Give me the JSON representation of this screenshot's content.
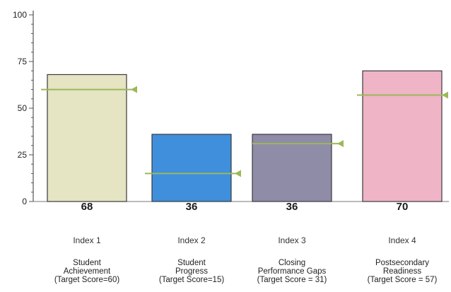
{
  "chart_data": {
    "type": "bar",
    "title": "",
    "xlabel": "",
    "ylabel": "",
    "ylim": [
      0,
      100
    ],
    "yticks": [
      0,
      25,
      50,
      75,
      100
    ],
    "legend": "none",
    "grid": false,
    "categories": [
      "Index 1",
      "Index 2",
      "Index 3",
      "Index 4"
    ],
    "descriptions": [
      [
        "Student",
        "Achievement",
        "(Target Score=60)"
      ],
      [
        "Student",
        "Progress",
        "(Target Score=15)"
      ],
      [
        "Closing",
        "Performance Gaps",
        "(Target Score = 31)"
      ],
      [
        "Postsecondary",
        "Readiness",
        "(Target Score = 57)"
      ]
    ],
    "values": [
      68,
      36,
      36,
      70
    ],
    "value_labels": [
      "68",
      "36",
      "36",
      "70"
    ],
    "targets": [
      60,
      15,
      31,
      57
    ],
    "bar_colors": [
      "#e5e4c3",
      "#3f8fdd",
      "#8f8ca8",
      "#efb4c6"
    ],
    "target_line_color": "#9cb85a"
  }
}
